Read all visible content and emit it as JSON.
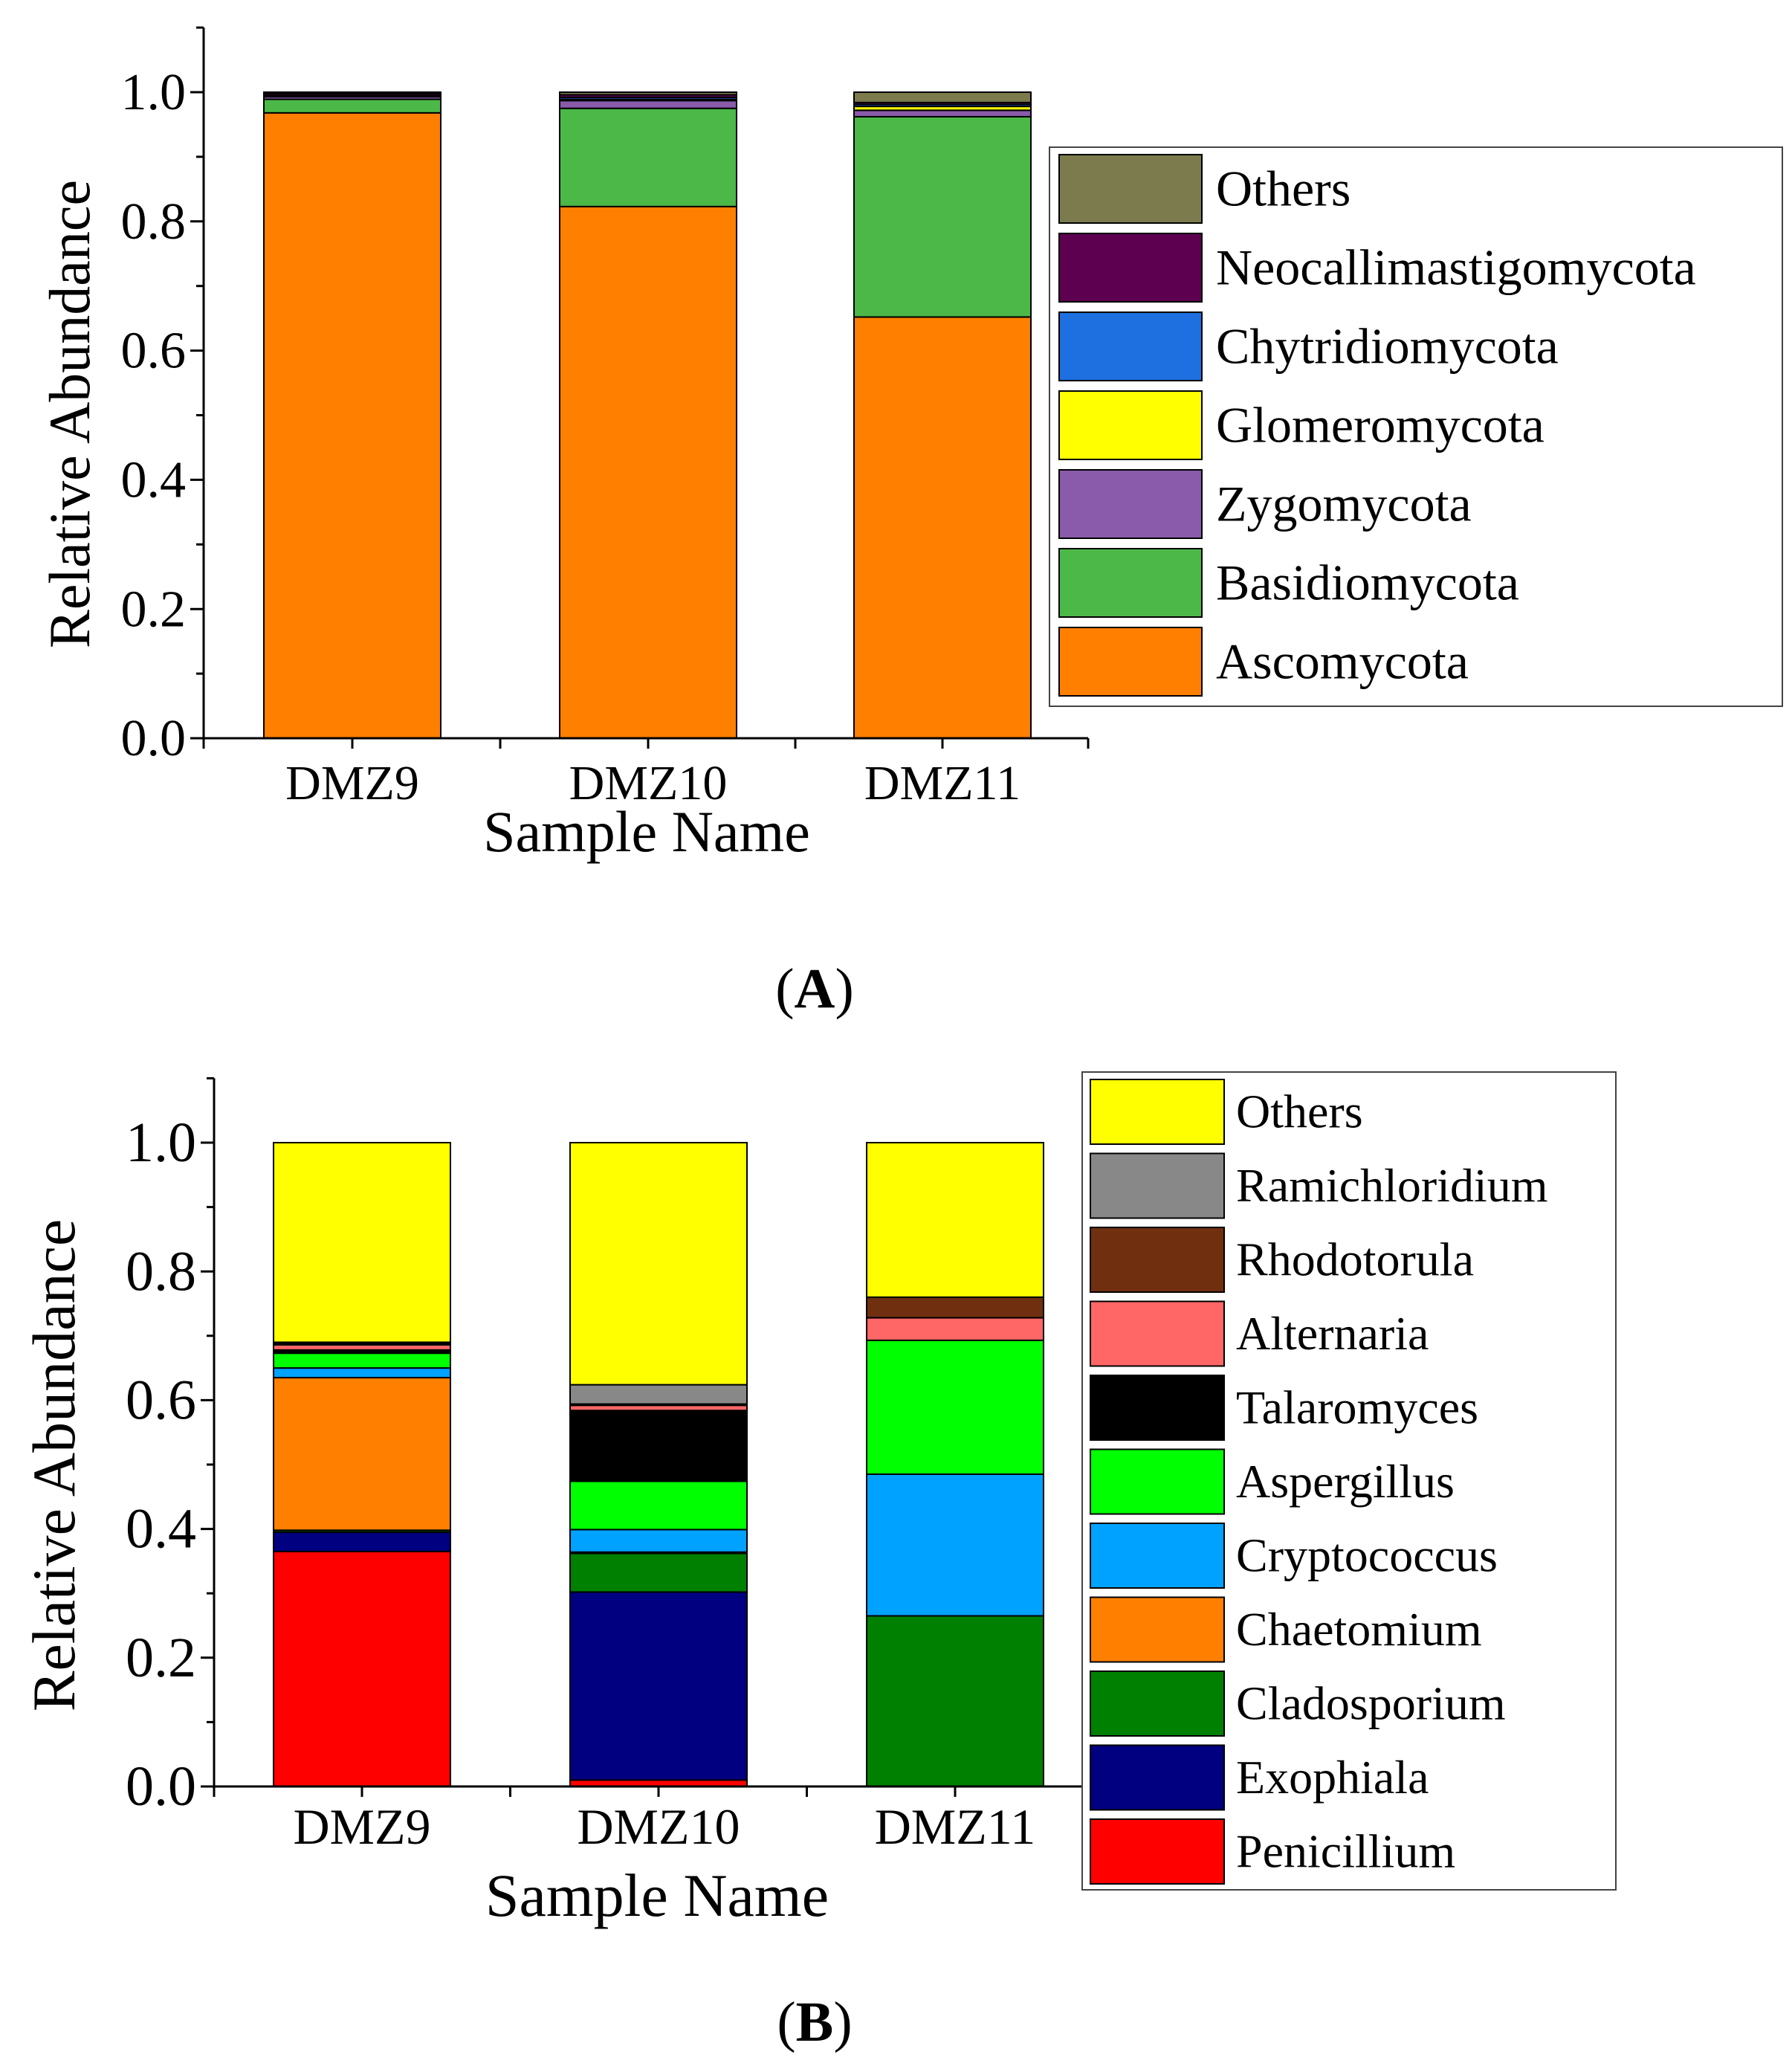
{
  "chart_data": [
    {
      "panel": "A",
      "caption_letter": "A",
      "type": "bar",
      "stacked": true,
      "xlabel": "Sample Name",
      "ylabel": "Relative Abundance",
      "ylim": [
        0,
        1.1
      ],
      "yticks": [
        "0.0",
        "0.2",
        "0.4",
        "0.6",
        "0.8",
        "1.0"
      ],
      "categories": [
        "DMZ9",
        "DMZ10",
        "DMZ11"
      ],
      "series": [
        {
          "name": "Ascomycota",
          "color": "#FF7F00",
          "values": [
            0.968,
            0.823,
            0.652
          ]
        },
        {
          "name": "Basidiomycota",
          "color": "#4CB848",
          "values": [
            0.021,
            0.152,
            0.31
          ]
        },
        {
          "name": "Zygomycota",
          "color": "#8A5BAA",
          "values": [
            0.004,
            0.012,
            0.01
          ]
        },
        {
          "name": "Glomeromycota",
          "color": "#FFFF00",
          "values": [
            0.001,
            0.002,
            0.006
          ]
        },
        {
          "name": "Chytridiomycota",
          "color": "#1E6FE0",
          "values": [
            0.001,
            0.003,
            0.003
          ]
        },
        {
          "name": "Neocallimastigomycota",
          "color": "#5E0050",
          "values": [
            0.003,
            0.004,
            0.003
          ]
        },
        {
          "name": "Others",
          "color": "#7B7B4E",
          "values": [
            0.002,
            0.004,
            0.016
          ]
        }
      ]
    },
    {
      "panel": "B",
      "caption_letter": "B",
      "type": "bar",
      "stacked": true,
      "xlabel": "Sample Name",
      "ylabel": "Relative Abundance",
      "ylim": [
        0,
        1.1
      ],
      "yticks": [
        "0.0",
        "0.2",
        "0.4",
        "0.6",
        "0.8",
        "1.0"
      ],
      "categories": [
        "DMZ9",
        "DMZ10",
        "DMZ11"
      ],
      "series": [
        {
          "name": "Penicillium",
          "color": "#FF0000",
          "values": [
            0.365,
            0.01,
            0.0
          ]
        },
        {
          "name": "Exophiala",
          "color": "#000080",
          "values": [
            0.03,
            0.292,
            0.0
          ]
        },
        {
          "name": "Cladosporium",
          "color": "#008000",
          "values": [
            0.003,
            0.06,
            0.265
          ]
        },
        {
          "name": "Chaetomium",
          "color": "#FF8000",
          "values": [
            0.237,
            0.002,
            0.0
          ]
        },
        {
          "name": "Cryptococcus",
          "color": "#00A2FF",
          "values": [
            0.015,
            0.035,
            0.22
          ]
        },
        {
          "name": "Aspergillus",
          "color": "#00FF00",
          "values": [
            0.023,
            0.075,
            0.208
          ]
        },
        {
          "name": "Talaromyces",
          "color": "#000000",
          "values": [
            0.005,
            0.11,
            0.0
          ]
        },
        {
          "name": "Alternaria",
          "color": "#FF6666",
          "values": [
            0.008,
            0.008,
            0.035
          ]
        },
        {
          "name": "Rhodotorula",
          "color": "#703010",
          "values": [
            0.002,
            0.002,
            0.032
          ]
        },
        {
          "name": "Ramichloridium",
          "color": "#888888",
          "values": [
            0.002,
            0.03,
            0.0
          ]
        },
        {
          "name": "Others",
          "color": "#FFFF00",
          "values": [
            0.31,
            0.376,
            0.24
          ]
        }
      ]
    }
  ]
}
